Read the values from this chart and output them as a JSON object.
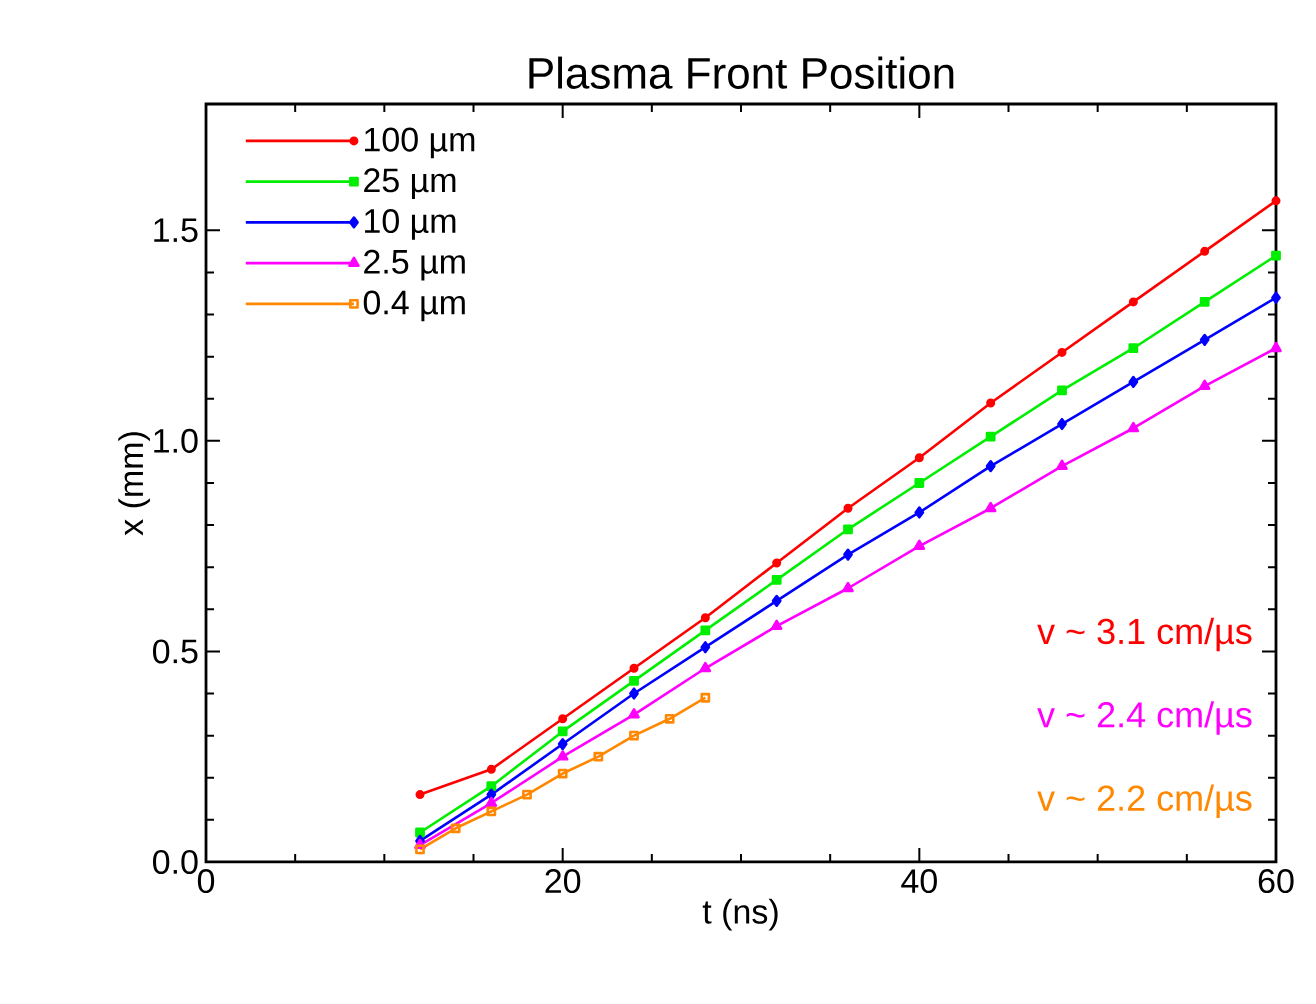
{
  "chart_data": {
    "type": "line",
    "title": "Plasma Front Position",
    "xlabel": "t (ns)",
    "ylabel": "x (mm)",
    "xlim": [
      0,
      60
    ],
    "xticks": [
      0,
      20,
      40,
      60
    ],
    "ylim": [
      0,
      1.8
    ],
    "yticks": [
      {
        "value": 0,
        "label": "0.0"
      },
      0.5,
      {
        "value": 1,
        "label": "1.0"
      },
      1.5
    ],
    "legend": "top left",
    "grid": false,
    "series": [
      {
        "name": "100 µm",
        "color": "#ff0000",
        "marker": "circle",
        "x": [
          12,
          16,
          20,
          24,
          28,
          32,
          36,
          40,
          44,
          48,
          52,
          56,
          60
        ],
        "values": [
          0.16,
          0.22,
          0.34,
          0.46,
          0.58,
          0.71,
          0.84,
          0.96,
          1.09,
          1.21,
          1.33,
          1.45,
          1.57
        ]
      },
      {
        "name": "25 µm",
        "color": "#00ee00",
        "marker": "square",
        "x": [
          12,
          16,
          20,
          24,
          28,
          32,
          36,
          40,
          44,
          48,
          52,
          56,
          60
        ],
        "values": [
          0.07,
          0.18,
          0.31,
          0.43,
          0.55,
          0.67,
          0.79,
          0.9,
          1.01,
          1.12,
          1.22,
          1.33,
          1.44
        ]
      },
      {
        "name": "10 µm",
        "color": "#0000ff",
        "marker": "diamond",
        "x": [
          12,
          16,
          20,
          24,
          28,
          32,
          36,
          40,
          44,
          48,
          52,
          56,
          60
        ],
        "values": [
          0.05,
          0.16,
          0.28,
          0.4,
          0.51,
          0.62,
          0.73,
          0.83,
          0.94,
          1.04,
          1.14,
          1.24,
          1.34
        ]
      },
      {
        "name": "2.5 µm",
        "color": "#ff00ff",
        "marker": "triangle",
        "x": [
          12,
          16,
          20,
          24,
          28,
          32,
          36,
          40,
          44,
          48,
          52,
          56,
          60
        ],
        "values": [
          0.04,
          0.14,
          0.25,
          0.35,
          0.46,
          0.56,
          0.65,
          0.75,
          0.84,
          0.94,
          1.03,
          1.13,
          1.22
        ]
      },
      {
        "name": "0.4 µm",
        "color": "#ff8800",
        "marker": "square",
        "x": [
          12,
          14,
          16,
          18,
          20,
          22,
          24,
          26,
          28
        ],
        "values": [
          0.03,
          0.08,
          0.12,
          0.16,
          0.21,
          0.25,
          0.3,
          0.34,
          0.39
        ]
      }
    ],
    "annotations": [
      "v ~ 3.1 cm/µs",
      "v ~ 2.4 cm/µs",
      "v ~ 2.2 cm/µs"
    ]
  }
}
